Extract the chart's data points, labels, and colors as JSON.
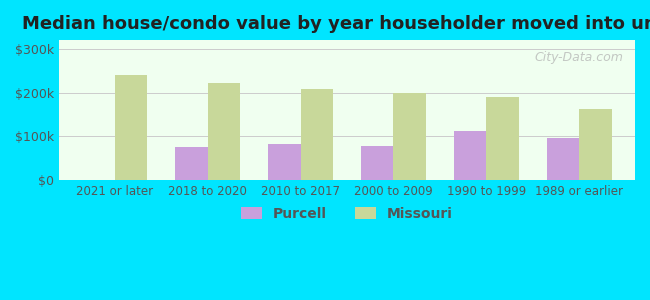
{
  "title": "Median house/condo value by year householder moved into unit",
  "categories": [
    "2021 or later",
    "2018 to 2020",
    "2010 to 2017",
    "2000 to 2009",
    "1990 to 1999",
    "1989 or earlier"
  ],
  "purcell_values": [
    null,
    75000,
    82000,
    78000,
    112000,
    97000
  ],
  "missouri_values": [
    240000,
    222000,
    208000,
    200000,
    190000,
    162000
  ],
  "purcell_color": "#c9a0dc",
  "missouri_color": "#c8d89a",
  "background_color": "#e6fff5",
  "plot_bg_gradient_top": "#f0fff0",
  "plot_bg_gradient_bottom": "#f5ffe8",
  "ylabel_ticks": [
    "$0",
    "$100k",
    "$200k",
    "$300k"
  ],
  "ytick_values": [
    0,
    100000,
    200000,
    300000
  ],
  "ylim": [
    0,
    320000
  ],
  "bar_width": 0.35,
  "outer_bg": "#00e5ff",
  "legend_purcell": "Purcell",
  "legend_missouri": "Missouri",
  "watermark": "City-Data.com"
}
